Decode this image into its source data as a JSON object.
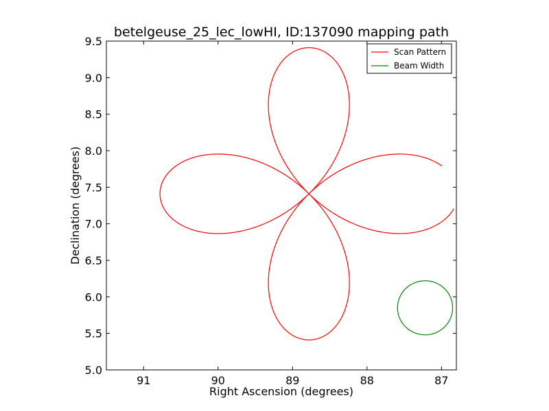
{
  "chart_data": {
    "type": "line",
    "title": "betelgeuse_25_lec_lowHI, ID:137090 mapping path",
    "xlabel": "Right Ascension (degrees)",
    "ylabel": "Declination (degrees)",
    "xlim": [
      91.5,
      86.8
    ],
    "ylim": [
      5.0,
      9.5
    ],
    "x_inverted": true,
    "x_ticks": [
      91,
      90,
      89,
      88,
      87
    ],
    "x_tick_labels": [
      "91",
      "90",
      "89",
      "88",
      "87"
    ],
    "y_ticks": [
      5.0,
      5.5,
      6.0,
      6.5,
      7.0,
      7.5,
      8.0,
      8.5,
      9.0,
      9.5
    ],
    "y_tick_labels": [
      "5.0",
      "5.5",
      "6.0",
      "6.5",
      "7.0",
      "7.5",
      "8.0",
      "8.5",
      "9.0",
      "9.5"
    ],
    "grid": false,
    "legend_position": "top-right",
    "series": [
      {
        "name": "Scan Pattern",
        "kind": "rose-curve",
        "color": "#ff0000",
        "center": [
          88.78,
          7.41
        ],
        "radius_ra": 2.0,
        "radius_dec": 2.0,
        "petals": 4,
        "gap_start_angle_deg": 168,
        "gap_end_angle_deg": 186,
        "approx_extent": {
          "ra": [
            90.8,
            86.8
          ],
          "dec": [
            5.41,
            9.41
          ]
        }
      },
      {
        "name": "Beam Width",
        "kind": "circle",
        "color": "#008000",
        "center": [
          87.22,
          5.85
        ],
        "radius_ra": 0.37,
        "radius_dec": 0.37
      }
    ]
  }
}
